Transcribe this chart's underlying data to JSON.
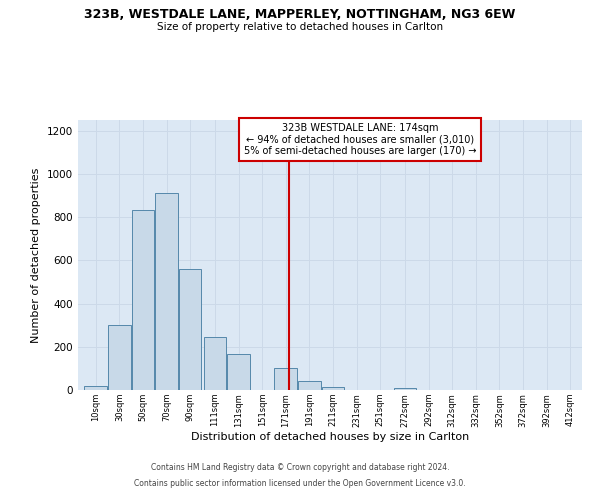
{
  "title": "323B, WESTDALE LANE, MAPPERLEY, NOTTINGHAM, NG3 6EW",
  "subtitle": "Size of property relative to detached houses in Carlton",
  "xlabel": "Distribution of detached houses by size in Carlton",
  "ylabel": "Number of detached properties",
  "bar_labels": [
    "10sqm",
    "30sqm",
    "50sqm",
    "70sqm",
    "90sqm",
    "111sqm",
    "131sqm",
    "151sqm",
    "171sqm",
    "191sqm",
    "211sqm",
    "231sqm",
    "251sqm",
    "272sqm",
    "292sqm",
    "312sqm",
    "332sqm",
    "352sqm",
    "372sqm",
    "392sqm",
    "412sqm"
  ],
  "bar_values": [
    20,
    300,
    835,
    910,
    560,
    245,
    165,
    0,
    100,
    40,
    15,
    0,
    0,
    10,
    0,
    0,
    0,
    0,
    0,
    0,
    0
  ],
  "bar_left_edges": [
    0,
    20,
    40,
    60,
    80,
    101,
    121,
    141,
    161,
    181,
    201,
    221,
    241,
    262,
    282,
    302,
    322,
    342,
    362,
    382,
    402
  ],
  "bar_widths": [
    20,
    20,
    20,
    20,
    20,
    20,
    20,
    20,
    20,
    20,
    20,
    20,
    20,
    20,
    20,
    20,
    20,
    20,
    20,
    20,
    20
  ],
  "property_line_x": 174,
  "ylim": [
    0,
    1250
  ],
  "xlim": [
    -5,
    422
  ],
  "bar_color": "#c8d9e8",
  "bar_edge_color": "#5588aa",
  "line_color": "#cc0000",
  "annotation_text_line1": "323B WESTDALE LANE: 174sqm",
  "annotation_text_line2": "← 94% of detached houses are smaller (3,010)",
  "annotation_text_line3": "5% of semi-detached houses are larger (170) →",
  "footnote1": "Contains HM Land Registry data © Crown copyright and database right 2024.",
  "footnote2": "Contains public sector information licensed under the Open Government Licence v3.0.",
  "grid_color": "#ccd9e8",
  "background_color": "#dce8f4"
}
